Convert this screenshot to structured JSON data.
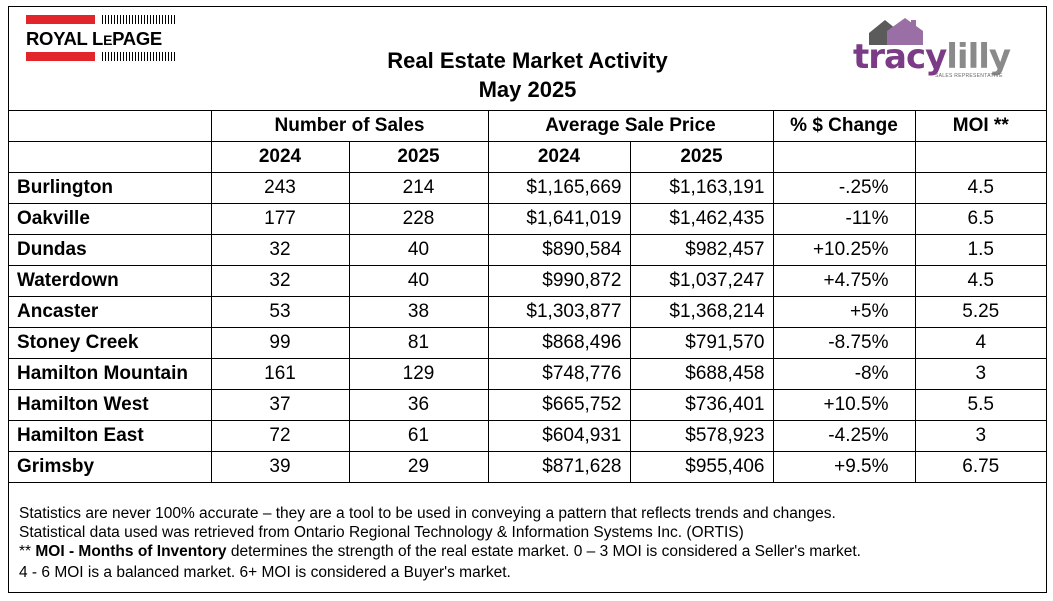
{
  "header": {
    "title": "Real Estate Market Activity",
    "subtitle": "May 2025",
    "left_logo": {
      "text_main": "ROYAL L",
      "text_small": "E",
      "text_end": "PAGE",
      "accent": "#e2242b"
    },
    "right_logo": {
      "part1": "tracy",
      "part2": "lilly",
      "tagline": "SALES REPRESENTATIVE",
      "accent": "#7b3b86"
    }
  },
  "table": {
    "group_headers": [
      "Number of Sales",
      "Average Sale Price",
      "% $ Change",
      "MOI **"
    ],
    "year_headers": [
      "2024",
      "2025",
      "2024",
      "2025"
    ],
    "rows": [
      {
        "city": "Burlington",
        "sales_2024": "243",
        "sales_2025": "214",
        "price_2024": "$1,165,669",
        "price_2025": "$1,163,191",
        "change": "-.25%",
        "moi": "4.5"
      },
      {
        "city": "Oakville",
        "sales_2024": "177",
        "sales_2025": "228",
        "price_2024": "$1,641,019",
        "price_2025": "$1,462,435",
        "change": "-11%",
        "moi": "6.5"
      },
      {
        "city": "Dundas",
        "sales_2024": "32",
        "sales_2025": "40",
        "price_2024": "$890,584",
        "price_2025": "$982,457",
        "change": "+10.25%",
        "moi": "1.5"
      },
      {
        "city": "Waterdown",
        "sales_2024": "32",
        "sales_2025": "40",
        "price_2024": "$990,872",
        "price_2025": "$1,037,247",
        "change": "+4.75%",
        "moi": "4.5"
      },
      {
        "city": "Ancaster",
        "sales_2024": "53",
        "sales_2025": "38",
        "price_2024": "$1,303,877",
        "price_2025": "$1,368,214",
        "change": "+5%",
        "moi": "5.25"
      },
      {
        "city": "Stoney Creek",
        "sales_2024": "99",
        "sales_2025": "81",
        "price_2024": "$868,496",
        "price_2025": "$791,570",
        "change": "-8.75%",
        "moi": "4"
      },
      {
        "city": "Hamilton Mountain",
        "sales_2024": "161",
        "sales_2025": "129",
        "price_2024": "$748,776",
        "price_2025": "$688,458",
        "change": "-8%",
        "moi": "3"
      },
      {
        "city": "Hamilton West",
        "sales_2024": "37",
        "sales_2025": "36",
        "price_2024": "$665,752",
        "price_2025": "$736,401",
        "change": "+10.5%",
        "moi": "5.5"
      },
      {
        "city": "Hamilton East",
        "sales_2024": "72",
        "sales_2025": "61",
        "price_2024": "$604,931",
        "price_2025": "$578,923",
        "change": "-4.25%",
        "moi": "3"
      },
      {
        "city": "Grimsby",
        "sales_2024": "39",
        "sales_2025": "29",
        "price_2024": "$871,628",
        "price_2025": "$955,406",
        "change": "+9.5%",
        "moi": "6.75"
      }
    ]
  },
  "notes": {
    "line1": "Statistics are never 100% accurate – they are a tool to be used in conveying a pattern that reflects trends and changes.",
    "line2": "Statistical data used was retrieved from Ontario Regional Technology & Information Systems Inc. (ORTIS)",
    "line3_prefix": "** ",
    "line3_bold": "MOI - Months of Inventory",
    "line3_rest": " determines the strength of the real estate market. 0 – 3 MOI is considered a Seller's market.",
    "line4": "4 - 6 MOI is a balanced market. 6+ MOI is considered a Buyer's market."
  }
}
